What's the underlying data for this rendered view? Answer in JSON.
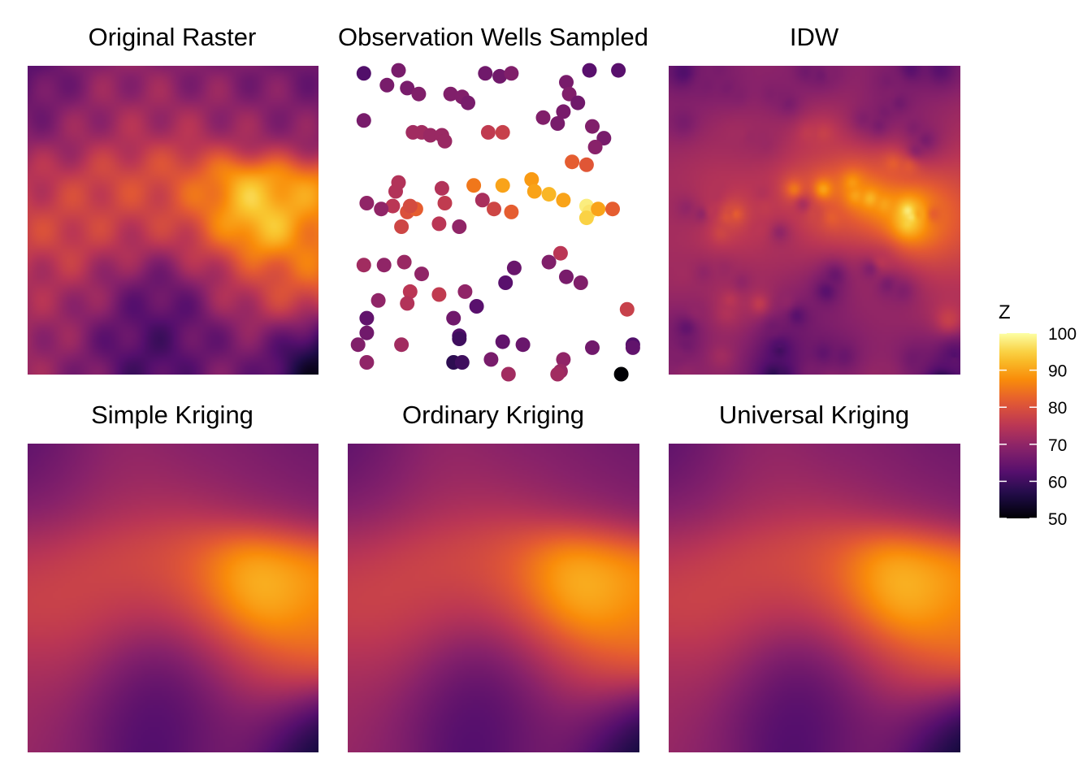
{
  "chart_data": {
    "type": "heatmap",
    "colormap": "inferno",
    "legend": {
      "title": "Z",
      "min": 50,
      "max": 100,
      "ticks": [
        50,
        60,
        70,
        80,
        90,
        100
      ],
      "placement": "right"
    },
    "grid": false,
    "panels": [
      {
        "id": "original",
        "title": "Original Raster",
        "kind": "raster",
        "style": "rough"
      },
      {
        "id": "wells",
        "title": "Observation Wells Sampled",
        "kind": "points"
      },
      {
        "id": "idw",
        "title": "IDW",
        "kind": "raster",
        "style": "idw"
      },
      {
        "id": "simple",
        "title": "Simple Kriging",
        "kind": "raster",
        "style": "smooth"
      },
      {
        "id": "ordinary",
        "title": "Ordinary Kriging",
        "kind": "raster",
        "style": "smooth"
      },
      {
        "id": "universal",
        "title": "Universal Kriging",
        "kind": "raster",
        "style": "smooth"
      }
    ],
    "domain": {
      "x": [
        0,
        1
      ],
      "y": [
        0,
        1
      ]
    },
    "surface_controls": [
      {
        "x": 0.02,
        "y": 0.98,
        "z": 62
      },
      {
        "x": 0.15,
        "y": 0.95,
        "z": 68
      },
      {
        "x": 0.35,
        "y": 0.96,
        "z": 70
      },
      {
        "x": 0.55,
        "y": 0.97,
        "z": 68
      },
      {
        "x": 0.75,
        "y": 0.95,
        "z": 67
      },
      {
        "x": 0.97,
        "y": 0.97,
        "z": 65
      },
      {
        "x": 0.05,
        "y": 0.8,
        "z": 68
      },
      {
        "x": 0.25,
        "y": 0.8,
        "z": 72
      },
      {
        "x": 0.45,
        "y": 0.82,
        "z": 73
      },
      {
        "x": 0.65,
        "y": 0.82,
        "z": 72
      },
      {
        "x": 0.85,
        "y": 0.8,
        "z": 70
      },
      {
        "x": 0.97,
        "y": 0.85,
        "z": 68
      },
      {
        "x": 0.05,
        "y": 0.62,
        "z": 75
      },
      {
        "x": 0.2,
        "y": 0.58,
        "z": 78
      },
      {
        "x": 0.35,
        "y": 0.6,
        "z": 80
      },
      {
        "x": 0.5,
        "y": 0.62,
        "z": 79
      },
      {
        "x": 0.6,
        "y": 0.58,
        "z": 86
      },
      {
        "x": 0.75,
        "y": 0.55,
        "z": 94
      },
      {
        "x": 0.82,
        "y": 0.5,
        "z": 100
      },
      {
        "x": 0.9,
        "y": 0.58,
        "z": 88
      },
      {
        "x": 0.97,
        "y": 0.45,
        "z": 85
      },
      {
        "x": 0.05,
        "y": 0.45,
        "z": 78
      },
      {
        "x": 0.15,
        "y": 0.45,
        "z": 80
      },
      {
        "x": 0.25,
        "y": 0.42,
        "z": 75
      },
      {
        "x": 0.35,
        "y": 0.45,
        "z": 77
      },
      {
        "x": 0.45,
        "y": 0.45,
        "z": 76
      },
      {
        "x": 0.55,
        "y": 0.42,
        "z": 78
      },
      {
        "x": 0.68,
        "y": 0.42,
        "z": 84
      },
      {
        "x": 0.92,
        "y": 0.35,
        "z": 84
      },
      {
        "x": 0.05,
        "y": 0.28,
        "z": 72
      },
      {
        "x": 0.15,
        "y": 0.3,
        "z": 74
      },
      {
        "x": 0.25,
        "y": 0.25,
        "z": 70
      },
      {
        "x": 0.35,
        "y": 0.28,
        "z": 65
      },
      {
        "x": 0.45,
        "y": 0.3,
        "z": 62
      },
      {
        "x": 0.55,
        "y": 0.28,
        "z": 64
      },
      {
        "x": 0.65,
        "y": 0.28,
        "z": 72
      },
      {
        "x": 0.75,
        "y": 0.28,
        "z": 76
      },
      {
        "x": 0.88,
        "y": 0.22,
        "z": 78
      },
      {
        "x": 0.05,
        "y": 0.1,
        "z": 72
      },
      {
        "x": 0.15,
        "y": 0.05,
        "z": 68
      },
      {
        "x": 0.3,
        "y": 0.12,
        "z": 64
      },
      {
        "x": 0.4,
        "y": 0.1,
        "z": 60
      },
      {
        "x": 0.5,
        "y": 0.15,
        "z": 62
      },
      {
        "x": 0.6,
        "y": 0.1,
        "z": 64
      },
      {
        "x": 0.7,
        "y": 0.05,
        "z": 68
      },
      {
        "x": 0.8,
        "y": 0.08,
        "z": 66
      },
      {
        "x": 0.92,
        "y": 0.05,
        "z": 58
      },
      {
        "x": 0.99,
        "y": 0.01,
        "z": 50
      }
    ],
    "wells": [
      {
        "x": 0.05,
        "y": 0.98,
        "z": 62
      },
      {
        "x": 0.17,
        "y": 0.99,
        "z": 67
      },
      {
        "x": 0.13,
        "y": 0.94,
        "z": 67
      },
      {
        "x": 0.2,
        "y": 0.93,
        "z": 67
      },
      {
        "x": 0.24,
        "y": 0.91,
        "z": 68
      },
      {
        "x": 0.35,
        "y": 0.91,
        "z": 68
      },
      {
        "x": 0.39,
        "y": 0.9,
        "z": 68
      },
      {
        "x": 0.41,
        "y": 0.88,
        "z": 67
      },
      {
        "x": 0.47,
        "y": 0.98,
        "z": 66
      },
      {
        "x": 0.52,
        "y": 0.97,
        "z": 66
      },
      {
        "x": 0.56,
        "y": 0.98,
        "z": 68
      },
      {
        "x": 0.75,
        "y": 0.95,
        "z": 67
      },
      {
        "x": 0.76,
        "y": 0.91,
        "z": 68
      },
      {
        "x": 0.79,
        "y": 0.88,
        "z": 66
      },
      {
        "x": 0.83,
        "y": 0.99,
        "z": 63
      },
      {
        "x": 0.93,
        "y": 0.99,
        "z": 63
      },
      {
        "x": 0.74,
        "y": 0.85,
        "z": 67
      },
      {
        "x": 0.67,
        "y": 0.83,
        "z": 68
      },
      {
        "x": 0.05,
        "y": 0.82,
        "z": 67
      },
      {
        "x": 0.22,
        "y": 0.78,
        "z": 72
      },
      {
        "x": 0.25,
        "y": 0.78,
        "z": 72
      },
      {
        "x": 0.28,
        "y": 0.77,
        "z": 71
      },
      {
        "x": 0.32,
        "y": 0.77,
        "z": 71
      },
      {
        "x": 0.33,
        "y": 0.75,
        "z": 71
      },
      {
        "x": 0.48,
        "y": 0.78,
        "z": 76
      },
      {
        "x": 0.53,
        "y": 0.78,
        "z": 77
      },
      {
        "x": 0.72,
        "y": 0.81,
        "z": 67
      },
      {
        "x": 0.84,
        "y": 0.8,
        "z": 68
      },
      {
        "x": 0.88,
        "y": 0.76,
        "z": 67
      },
      {
        "x": 0.85,
        "y": 0.73,
        "z": 69
      },
      {
        "x": 0.77,
        "y": 0.68,
        "z": 82
      },
      {
        "x": 0.82,
        "y": 0.67,
        "z": 81
      },
      {
        "x": 0.17,
        "y": 0.61,
        "z": 74
      },
      {
        "x": 0.32,
        "y": 0.59,
        "z": 74
      },
      {
        "x": 0.43,
        "y": 0.6,
        "z": 85
      },
      {
        "x": 0.53,
        "y": 0.6,
        "z": 90
      },
      {
        "x": 0.63,
        "y": 0.62,
        "z": 89
      },
      {
        "x": 0.64,
        "y": 0.58,
        "z": 90
      },
      {
        "x": 0.69,
        "y": 0.57,
        "z": 92
      },
      {
        "x": 0.74,
        "y": 0.55,
        "z": 90
      },
      {
        "x": 0.82,
        "y": 0.53,
        "z": 98
      },
      {
        "x": 0.83,
        "y": 0.51,
        "z": 97
      },
      {
        "x": 0.82,
        "y": 0.49,
        "z": 95
      },
      {
        "x": 0.86,
        "y": 0.52,
        "z": 90
      },
      {
        "x": 0.91,
        "y": 0.52,
        "z": 82
      },
      {
        "x": 0.16,
        "y": 0.58,
        "z": 74
      },
      {
        "x": 0.15,
        "y": 0.53,
        "z": 75
      },
      {
        "x": 0.11,
        "y": 0.52,
        "z": 70
      },
      {
        "x": 0.06,
        "y": 0.54,
        "z": 70
      },
      {
        "x": 0.2,
        "y": 0.51,
        "z": 80
      },
      {
        "x": 0.23,
        "y": 0.52,
        "z": 82
      },
      {
        "x": 0.21,
        "y": 0.53,
        "z": 79
      },
      {
        "x": 0.33,
        "y": 0.54,
        "z": 76
      },
      {
        "x": 0.46,
        "y": 0.55,
        "z": 73
      },
      {
        "x": 0.5,
        "y": 0.52,
        "z": 78
      },
      {
        "x": 0.56,
        "y": 0.51,
        "z": 82
      },
      {
        "x": 0.18,
        "y": 0.46,
        "z": 78
      },
      {
        "x": 0.31,
        "y": 0.47,
        "z": 75
      },
      {
        "x": 0.38,
        "y": 0.46,
        "z": 70
      },
      {
        "x": 0.05,
        "y": 0.33,
        "z": 72
      },
      {
        "x": 0.12,
        "y": 0.33,
        "z": 70
      },
      {
        "x": 0.19,
        "y": 0.34,
        "z": 71
      },
      {
        "x": 0.25,
        "y": 0.3,
        "z": 70
      },
      {
        "x": 0.1,
        "y": 0.21,
        "z": 70
      },
      {
        "x": 0.21,
        "y": 0.24,
        "z": 75
      },
      {
        "x": 0.2,
        "y": 0.2,
        "z": 74
      },
      {
        "x": 0.31,
        "y": 0.23,
        "z": 76
      },
      {
        "x": 0.4,
        "y": 0.24,
        "z": 70
      },
      {
        "x": 0.44,
        "y": 0.19,
        "z": 63
      },
      {
        "x": 0.54,
        "y": 0.27,
        "z": 63
      },
      {
        "x": 0.57,
        "y": 0.32,
        "z": 65
      },
      {
        "x": 0.69,
        "y": 0.34,
        "z": 68
      },
      {
        "x": 0.75,
        "y": 0.29,
        "z": 67
      },
      {
        "x": 0.8,
        "y": 0.27,
        "z": 68
      },
      {
        "x": 0.73,
        "y": 0.37,
        "z": 75
      },
      {
        "x": 0.96,
        "y": 0.18,
        "z": 77
      },
      {
        "x": 0.06,
        "y": 0.15,
        "z": 64
      },
      {
        "x": 0.06,
        "y": 0.1,
        "z": 66
      },
      {
        "x": 0.03,
        "y": 0.06,
        "z": 68
      },
      {
        "x": 0.06,
        "y": 0.0,
        "z": 70
      },
      {
        "x": 0.18,
        "y": 0.06,
        "z": 72
      },
      {
        "x": 0.36,
        "y": 0.15,
        "z": 66
      },
      {
        "x": 0.38,
        "y": 0.09,
        "z": 62
      },
      {
        "x": 0.38,
        "y": 0.08,
        "z": 60
      },
      {
        "x": 0.36,
        "y": 0.0,
        "z": 58
      },
      {
        "x": 0.39,
        "y": 0.0,
        "z": 60
      },
      {
        "x": 0.53,
        "y": 0.07,
        "z": 64
      },
      {
        "x": 0.6,
        "y": 0.06,
        "z": 65
      },
      {
        "x": 0.49,
        "y": 0.01,
        "z": 67
      },
      {
        "x": 0.55,
        "y": -0.04,
        "z": 72
      },
      {
        "x": 0.74,
        "y": 0.01,
        "z": 70
      },
      {
        "x": 0.73,
        "y": -0.03,
        "z": 71
      },
      {
        "x": 0.72,
        "y": -0.04,
        "z": 72
      },
      {
        "x": 0.84,
        "y": 0.05,
        "z": 66
      },
      {
        "x": 0.98,
        "y": 0.06,
        "z": 62
      },
      {
        "x": 0.98,
        "y": 0.05,
        "z": 64
      },
      {
        "x": 0.94,
        "y": -0.04,
        "z": 50
      }
    ]
  }
}
